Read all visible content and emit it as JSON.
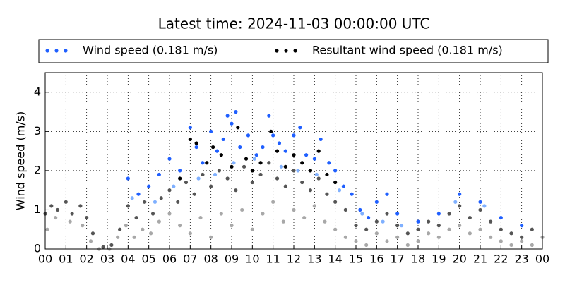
{
  "chart_data": {
    "type": "scatter",
    "title": "Latest time: 2024-11-03 00:00:00 UTC",
    "ylabel": "Wind speed (m/s)",
    "xlim": [
      0,
      24
    ],
    "xticks": [
      {
        "value": 0,
        "label": "00"
      },
      {
        "value": 1,
        "label": "01"
      },
      {
        "value": 2,
        "label": "02"
      },
      {
        "value": 3,
        "label": "03"
      },
      {
        "value": 4,
        "label": "04"
      },
      {
        "value": 5,
        "label": "05"
      },
      {
        "value": 6,
        "label": "06"
      },
      {
        "value": 7,
        "label": "07"
      },
      {
        "value": 8,
        "label": "08"
      },
      {
        "value": 9,
        "label": "09"
      },
      {
        "value": 10,
        "label": "10"
      },
      {
        "value": 11,
        "label": "11"
      },
      {
        "value": 12,
        "label": "12"
      },
      {
        "value": 13,
        "label": "13"
      },
      {
        "value": 14,
        "label": "14"
      },
      {
        "value": 15,
        "label": "15"
      },
      {
        "value": 16,
        "label": "16"
      },
      {
        "value": 17,
        "label": "17"
      },
      {
        "value": 18,
        "label": "18"
      },
      {
        "value": 19,
        "label": "19"
      },
      {
        "value": 20,
        "label": "20"
      },
      {
        "value": 21,
        "label": "21"
      },
      {
        "value": 22,
        "label": "22"
      },
      {
        "value": 23,
        "label": "23"
      },
      {
        "value": 24,
        "label": "00"
      }
    ],
    "ylim": [
      0,
      4.5
    ],
    "yticks": [
      0,
      1,
      2,
      3,
      4
    ],
    "grid": true,
    "series": [
      {
        "color": "#a8a8a8",
        "x": [
          0.1,
          0.5,
          1.2,
          1.8,
          2.2,
          2.6,
          3.1,
          3.5,
          3.9,
          4.3,
          4.7,
          5.1,
          5.5,
          6.0,
          6.5,
          7.0,
          7.5,
          8.0,
          8.5,
          9.0,
          9.5,
          10.0,
          10.5,
          11.0,
          11.5,
          12.0,
          12.5,
          13.0,
          13.5,
          14.0,
          14.5,
          15.0,
          15.5,
          16.0,
          16.5,
          17.0,
          17.5,
          18.0,
          18.5,
          19.0,
          19.5,
          20.0,
          20.5,
          21.0,
          21.5,
          22.0,
          22.5,
          23.0,
          23.5,
          24.0
        ],
        "values": [
          0.5,
          0.8,
          0.7,
          0.6,
          0.2,
          0.0,
          0.0,
          0.3,
          0.6,
          0.3,
          0.5,
          0.4,
          0.7,
          0.9,
          0.6,
          0.4,
          0.8,
          0.3,
          0.9,
          0.6,
          1.0,
          0.5,
          0.9,
          1.2,
          0.7,
          1.0,
          0.8,
          1.1,
          0.7,
          0.5,
          0.3,
          0.2,
          0.1,
          0.4,
          0.2,
          0.3,
          0.1,
          0.2,
          0.4,
          0.3,
          0.5,
          0.6,
          0.4,
          0.5,
          0.3,
          0.2,
          0.1,
          0.2,
          0.1,
          0.3
        ]
      },
      {
        "color": "#555555",
        "x": [
          0.0,
          0.3,
          0.6,
          1.0,
          1.3,
          1.7,
          2.0,
          2.3,
          2.8,
          3.2,
          3.6,
          4.0,
          4.4,
          4.8,
          5.2,
          5.6,
          6.0,
          6.4,
          6.8,
          7.2,
          7.6,
          8.0,
          8.4,
          8.8,
          9.2,
          9.6,
          10.0,
          10.4,
          10.8,
          11.2,
          11.6,
          12.0,
          12.4,
          12.8,
          13.2,
          13.6,
          14.0,
          14.5,
          15.0,
          15.5,
          16.0,
          16.5,
          17.0,
          17.5,
          18.0,
          18.5,
          19.0,
          19.5,
          20.0,
          20.5,
          21.0,
          21.5,
          22.0,
          22.5,
          23.0,
          23.5
        ],
        "values": [
          0.9,
          1.1,
          1.0,
          1.2,
          0.9,
          1.1,
          0.8,
          0.4,
          0.05,
          0.1,
          0.5,
          1.1,
          0.8,
          1.2,
          0.9,
          1.3,
          1.5,
          1.2,
          1.7,
          1.4,
          1.9,
          1.6,
          2.0,
          1.8,
          1.5,
          2.1,
          1.7,
          1.9,
          2.2,
          1.8,
          1.6,
          2.0,
          1.7,
          1.5,
          1.8,
          1.4,
          1.2,
          1.0,
          0.6,
          0.5,
          0.7,
          0.9,
          0.6,
          0.4,
          0.5,
          0.7,
          0.6,
          0.9,
          1.1,
          0.8,
          1.0,
          0.7,
          0.5,
          0.4,
          0.3,
          0.5
        ]
      },
      {
        "color": "#7fb0ff",
        "x": [
          4.2,
          5.3,
          6.2,
          7.4,
          8.2,
          9.1,
          10.1,
          11.4,
          12.2,
          13.1,
          14.2,
          15.3,
          16.3,
          17.2,
          19.8,
          21.2
        ],
        "values": [
          1.3,
          1.2,
          1.6,
          1.8,
          1.9,
          2.2,
          2.3,
          2.1,
          2.0,
          1.9,
          1.5,
          0.9,
          0.7,
          0.6,
          1.2,
          1.1
        ]
      },
      {
        "name": "Wind speed (0.181 m/s)",
        "color": "#1f5fff",
        "x": [
          4.0,
          4.5,
          5.0,
          5.5,
          6.0,
          6.5,
          7.0,
          7.3,
          7.6,
          8.0,
          8.3,
          8.6,
          8.8,
          9.0,
          9.2,
          9.4,
          9.8,
          10.2,
          10.5,
          10.8,
          11.0,
          11.3,
          11.6,
          12.0,
          12.3,
          12.6,
          13.0,
          13.3,
          13.7,
          14.0,
          14.4,
          14.8,
          15.2,
          15.6,
          16.0,
          16.5,
          17.0,
          18.0,
          19.0,
          20.0,
          21.0,
          22.0,
          23.0
        ],
        "values": [
          1.8,
          1.4,
          1.6,
          1.9,
          2.3,
          2.0,
          3.1,
          2.6,
          2.2,
          3.0,
          2.5,
          2.8,
          3.4,
          3.2,
          3.5,
          2.6,
          2.9,
          2.4,
          2.6,
          3.4,
          2.9,
          2.7,
          2.5,
          2.9,
          3.1,
          2.4,
          2.3,
          2.8,
          2.2,
          2.0,
          1.6,
          1.4,
          1.0,
          0.8,
          1.2,
          1.4,
          0.9,
          0.7,
          0.9,
          1.4,
          1.2,
          0.8,
          0.6
        ]
      },
      {
        "name": "Resultant wind speed (0.181 m/s)",
        "color": "#000000",
        "x": [
          6.5,
          7.0,
          7.3,
          7.8,
          8.1,
          8.5,
          9.0,
          9.3,
          9.7,
          10.0,
          10.4,
          10.9,
          11.2,
          11.6,
          12.0,
          12.4,
          12.8,
          13.2,
          13.6,
          14.0
        ],
        "values": [
          1.8,
          2.8,
          2.7,
          2.2,
          2.6,
          2.4,
          2.1,
          3.1,
          2.3,
          2.0,
          2.2,
          3.0,
          2.5,
          2.1,
          2.4,
          2.2,
          2.0,
          2.5,
          1.9,
          1.7
        ]
      }
    ]
  }
}
